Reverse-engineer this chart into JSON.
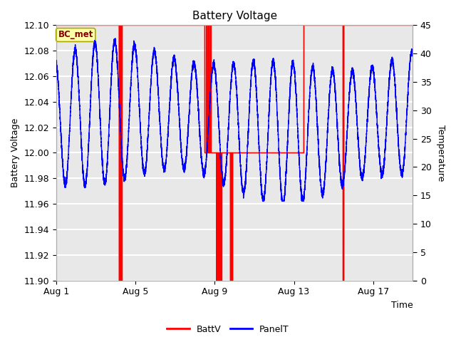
{
  "title": "Battery Voltage",
  "xlabel_right": "Time",
  "ylabel_left": "Battery Voltage",
  "ylabel_right": "Temperature",
  "ylim_left": [
    11.9,
    12.1
  ],
  "ylim_right": [
    0,
    45
  ],
  "plot_bg_color": "#e8e8e8",
  "grid_color": "#ffffff",
  "legend_items": [
    "BattV",
    "PanelT"
  ],
  "legend_colors": [
    "red",
    "blue"
  ],
  "box_label": "BC_met",
  "box_bg": "#ffffaa",
  "box_border": "#aaaa00",
  "box_text_color": "#880000",
  "x_tick_labels": [
    "Aug 1",
    "Aug 5",
    "Aug 9",
    "Aug 13",
    "Aug 17"
  ],
  "x_tick_positions": [
    0,
    4,
    8,
    12,
    16
  ],
  "yticks_left": [
    11.9,
    11.92,
    11.94,
    11.96,
    11.98,
    12.0,
    12.02,
    12.04,
    12.06,
    12.08,
    12.1
  ],
  "y_right_ticks": [
    0,
    5,
    10,
    15,
    20,
    25,
    30,
    35,
    40,
    45
  ],
  "n_days": 18,
  "figsize": [
    6.4,
    4.8
  ],
  "dpi": 100
}
